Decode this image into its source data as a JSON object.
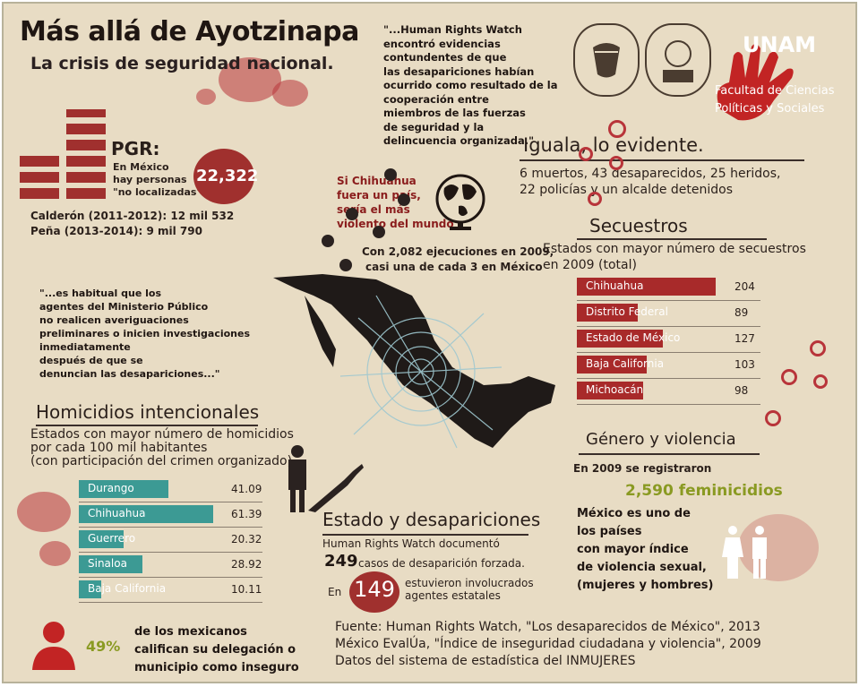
{
  "header": {
    "title": "Más allá de Ayotzinapa",
    "subtitle": "La crisis de seguridad nacional."
  },
  "hrw_quote": [
    "\"...Human Rights Watch",
    "encontró evidencias",
    "contundentes de que",
    " las desapariciones habían",
    "ocurrido como resultado de la",
    "cooperación entre",
    "miembros de las fuerzas",
    " de seguridad y la",
    "delincuencia organizada.\""
  ],
  "unam": {
    "name": "UNAM",
    "faculty_line1": "Facultad de Ciencias",
    "faculty_line2": "Políticas y Sociales"
  },
  "pgr": {
    "heading": "PGR:",
    "text_lines": [
      "En México",
      "hay personas",
      "\"no localizadas\""
    ],
    "total": "22,322",
    "calderon": "Calderón (2011-2012): 12 mil 532",
    "pena": "Peña (2013-2014): 9 mil 790"
  },
  "chihuahua_note": {
    "lines": [
      "Si Chihuahua",
      "fuera un país,",
      "sería el más",
      "violento del mundo"
    ],
    "ejecuciones_line1": "Con 2,082 ejecuciones en 2009,",
    "ejecuciones_line2": "casi una de cada 3 en México"
  },
  "iguala": {
    "heading": "Iguala, lo evidente.",
    "line1": "6 muertos, 43 desaparecidos, 25 heridos,",
    "line2": "22 policías y un alcalde detenidos"
  },
  "secuestros": {
    "heading": "Secuestros",
    "sub1": "Estados con mayor número de secuestros",
    "sub2": "en 2009 (total)",
    "color": "#a82a2a",
    "rows": [
      {
        "state": "Chihuahua",
        "value": "204",
        "num": 204
      },
      {
        "state": "Distrito Federal",
        "value": "89",
        "num": 89
      },
      {
        "state": "Estado de México",
        "value": "127",
        "num": 127
      },
      {
        "state": "Baja California",
        "value": "103",
        "num": 103
      },
      {
        "state": "Michoacán",
        "value": "98",
        "num": 98
      }
    ]
  },
  "mp_quote": [
    "\"...es habitual que los",
    " agentes del Ministerio Público",
    "  no realicen averiguaciones",
    " preliminares o inicien investigaciones",
    " inmediatamente",
    " después de que se",
    " denuncian las desapariciones...\""
  ],
  "homicidios": {
    "heading": "Homicidios intencionales",
    "sub1": "Estados con  mayor número de homicidios",
    "sub2": "por cada 100 mil habitantes",
    "sub3": "(con participación del crimen organizado)",
    "color": "#3c9a94",
    "rows": [
      {
        "state": "Durango",
        "value": "41.09",
        "num": 41.09
      },
      {
        "state": "Chihuahua",
        "value": "61.39",
        "num": 61.39
      },
      {
        "state": "Guerrero",
        "value": "20.32",
        "num": 20.32
      },
      {
        "state": "Sinaloa",
        "value": "28.92",
        "num": 28.92
      },
      {
        "state": "Baja California",
        "value": "10.11",
        "num": 10.11
      }
    ]
  },
  "desapariciones": {
    "heading": "Estado y desapariciones",
    "line1": "Human Rights Watch documentó",
    "count": "249",
    "count_text": "casos de desaparición forzada.",
    "en": "En",
    "state_count": "149",
    "state_text1": "estuvieron involucrados",
    "state_text2": "agentes estatales"
  },
  "genero": {
    "heading": "Género y violencia",
    "line1": "En 2009 se registraron",
    "feminicidios": "2,590 feminicidios",
    "stmt": [
      "México es uno de",
      "los países",
      "con mayor índice",
      "de violencia sexual,",
      "(mujeres y hombres)"
    ]
  },
  "inseguro": {
    "percent": "49%",
    "lines": [
      "de los mexicanos",
      "califican su delegación o",
      "municipio como inseguro"
    ]
  },
  "fuente": {
    "line1": "Fuente: Human Rights Watch, \"Los desaparecidos de México\", 2013",
    "line2": "México EvalÚa, \"Índice de inseguridad ciudadana y violencia\", 2009",
    "line3": "Datos del sistema de estadística del INMUJERES"
  }
}
